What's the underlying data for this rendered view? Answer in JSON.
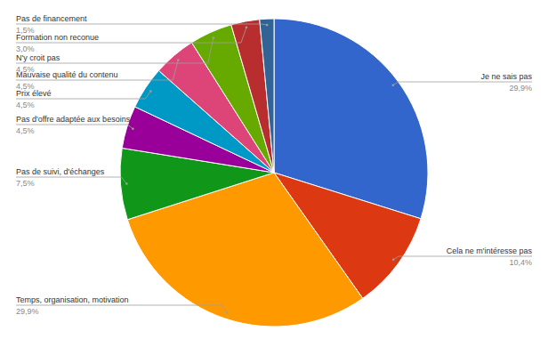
{
  "chart_data": {
    "type": "pie",
    "categories": [
      "Je ne sais pas",
      "Cela ne m'intéresse pas",
      "Temps, organisation, motivation",
      "Pas de suivi, d'échanges",
      "Pas d'offre adaptée aux besoins",
      "Prix élevé",
      "Mauvaise qualité du contenu",
      "N'y croit pas",
      "Formation non reconue",
      "Pas de financement"
    ],
    "values": [
      29.9,
      10.4,
      29.9,
      7.5,
      4.5,
      4.5,
      4.5,
      4.5,
      3.0,
      1.5
    ],
    "value_labels": [
      "29,9%",
      "10,4%",
      "29,9%",
      "7,5%",
      "4,5%",
      "4,5%",
      "4,5%",
      "4,5%",
      "3,0%",
      "1,5%"
    ],
    "colors": [
      "#3366cc",
      "#dc3912",
      "#ff9900",
      "#109618",
      "#990099",
      "#0099c6",
      "#dd4477",
      "#66aa00",
      "#b82e2e",
      "#316395"
    ],
    "data_labels": true
  }
}
